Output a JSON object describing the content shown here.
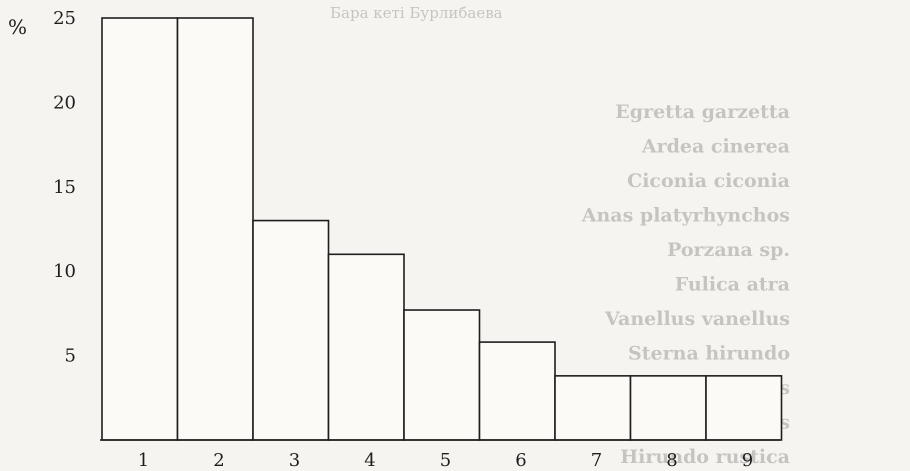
{
  "page": {
    "header_fragment": "Бара кеті Бурлибаева",
    "species": [
      "Egretta garzetta",
      "Ardea cinerea",
      "Ciconia ciconia",
      "Anas platyrhynchos",
      "Porzana sp.",
      "Fulica atra",
      "Vanellus vanellus",
      "Sterna hirundo",
      "Columba palumbus",
      "Otus scops",
      "Hirundo rustica"
    ],
    "colors": {
      "ink": "#1e1e1e",
      "paper": "#f6f4f0"
    }
  },
  "chart_data": {
    "type": "bar",
    "title": "",
    "xlabel": "",
    "ylabel": "%",
    "ylim": [
      0,
      25
    ],
    "yticks": [
      5,
      10,
      15,
      20,
      25
    ],
    "grid": false,
    "categories": [
      "1",
      "2",
      "3",
      "4",
      "5",
      "6",
      "7",
      "8",
      "9"
    ],
    "values": [
      25,
      25,
      13,
      11,
      7.7,
      5.8,
      3.8,
      3.8,
      3.8
    ]
  }
}
